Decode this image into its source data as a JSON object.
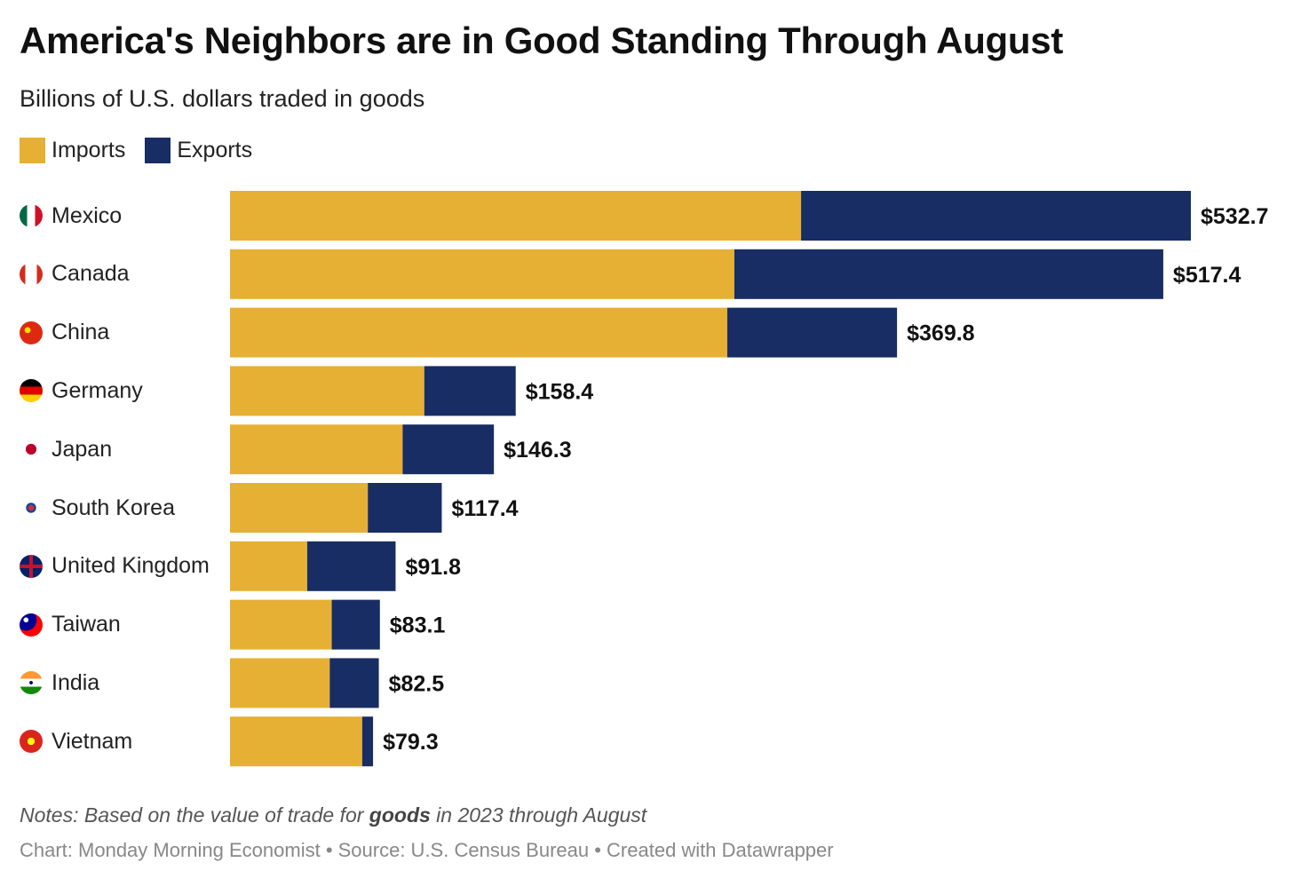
{
  "header": {
    "title": "America's Neighbors are in Good Standing Through August",
    "subtitle": "Billions of U.S. dollars traded in goods"
  },
  "legend": {
    "imports_label": "Imports",
    "exports_label": "Exports"
  },
  "colors": {
    "imports": "#E6B034",
    "exports": "#182D63"
  },
  "chart_data": {
    "type": "bar",
    "orientation": "horizontal",
    "stacked": true,
    "title": "America's Neighbors are in Good Standing Through August",
    "subtitle": "Billions of U.S. dollars traded in goods",
    "categories": [
      "Mexico",
      "Canada",
      "China",
      "Germany",
      "Japan",
      "South Korea",
      "United Kingdom",
      "Taiwan",
      "India",
      "Vietnam"
    ],
    "flag_icons": [
      "mexico-flag-icon",
      "canada-flag-icon",
      "china-flag-icon",
      "germany-flag-icon",
      "japan-flag-icon",
      "south-korea-flag-icon",
      "united-kingdom-flag-icon",
      "taiwan-flag-icon",
      "india-flag-icon",
      "vietnam-flag-icon"
    ],
    "series": [
      {
        "name": "Imports",
        "values": [
          316.6,
          279.6,
          275.7,
          107.7,
          95.7,
          76.4,
          42.8,
          56.4,
          55.3,
          73.3
        ]
      },
      {
        "name": "Exports",
        "values": [
          216.1,
          237.8,
          94.1,
          50.7,
          50.6,
          41.0,
          49.0,
          26.7,
          27.2,
          6.0
        ]
      }
    ],
    "totals": [
      532.7,
      517.4,
      369.8,
      158.4,
      146.3,
      117.4,
      91.8,
      83.1,
      82.5,
      79.3
    ],
    "total_labels": [
      "$532.7",
      "$517.4",
      "$369.8",
      "$158.4",
      "$146.3",
      "$117.4",
      "$91.8",
      "$83.1",
      "$82.5",
      "$79.3"
    ],
    "xlim": [
      0,
      532.7
    ],
    "grid": false,
    "legend_position": "top-left"
  },
  "footer": {
    "notes_prefix": "Notes: Based on the value of trade for ",
    "notes_bold": "goods",
    "notes_suffix": " in 2023 through August",
    "credit": "Chart: Monday Morning Economist • Source: U.S. Census Bureau • Created with Datawrapper"
  }
}
